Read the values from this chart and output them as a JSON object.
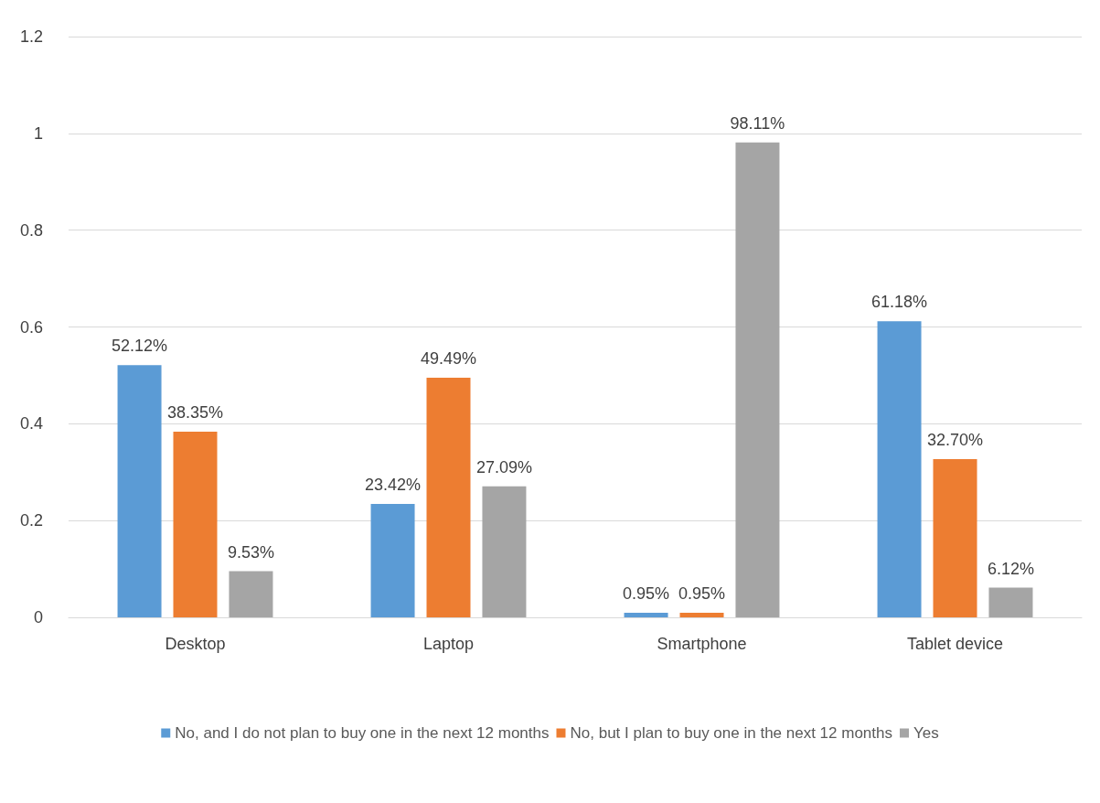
{
  "chart_data": {
    "type": "bar",
    "categories": [
      "Desktop",
      "Laptop",
      "Smartphone",
      "Tablet device"
    ],
    "series": [
      {
        "name": "No, and I do not plan to buy one in the next 12 months",
        "color": "#5b9bd5",
        "values": [
          0.5212,
          0.2342,
          0.0095,
          0.6118
        ],
        "value_labels": [
          "52.12%",
          "23.42%",
          "0.95%",
          "61.18%"
        ]
      },
      {
        "name": "No, but I plan to buy one in the next 12 months",
        "color": "#ed7d31",
        "values": [
          0.3835,
          0.4949,
          0.0095,
          0.327
        ],
        "value_labels": [
          "38.35%",
          "49.49%",
          "0.95%",
          "32.70%"
        ]
      },
      {
        "name": "Yes",
        "color": "#a5a5a5",
        "values": [
          0.0953,
          0.2709,
          0.9811,
          0.0612
        ],
        "value_labels": [
          "9.53%",
          "27.09%",
          "98.11%",
          "6.12%"
        ]
      }
    ],
    "ylim": [
      0,
      1.2
    ],
    "yticks": [
      0,
      0.2,
      0.4,
      0.6,
      0.8,
      1,
      1.2
    ],
    "grid": "y",
    "legend": "bottom"
  }
}
